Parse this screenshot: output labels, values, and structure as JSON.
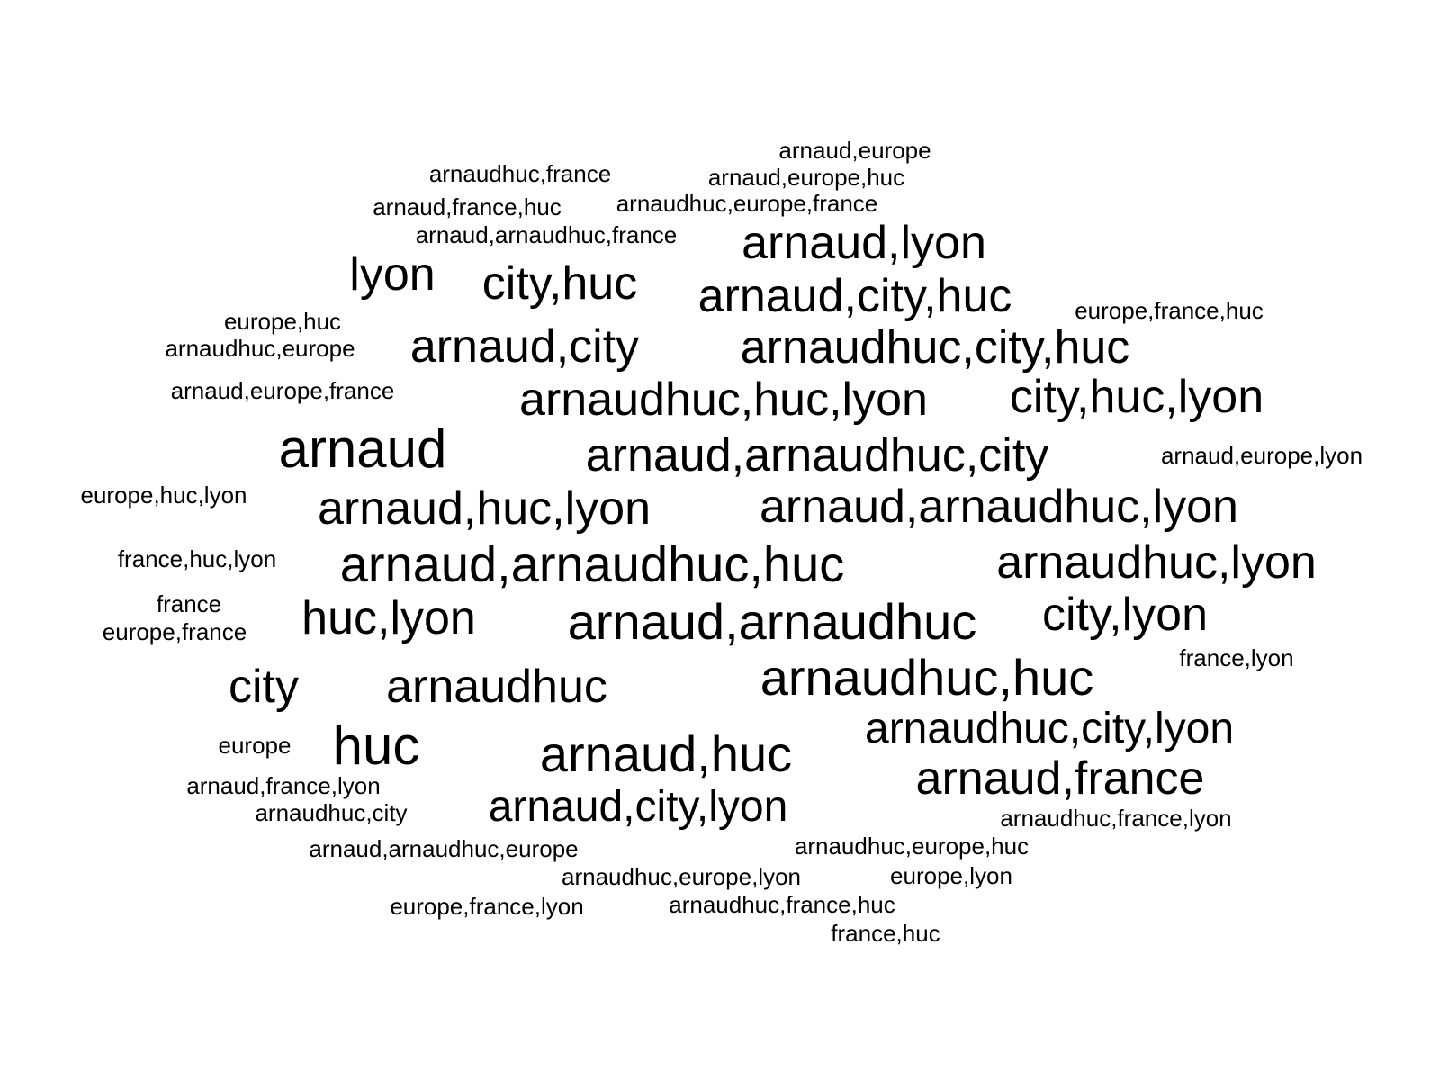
{
  "words": [
    {
      "text": "arnaud,europe",
      "weight": 1
    },
    {
      "text": "arnaudhuc,france",
      "weight": 1
    },
    {
      "text": "arnaud,europe,huc",
      "weight": 1
    },
    {
      "text": "arnaud,france,huc",
      "weight": 1
    },
    {
      "text": "arnaudhuc,europe,france",
      "weight": 1
    },
    {
      "text": "arnaud,arnaudhuc,france",
      "weight": 1
    },
    {
      "text": "arnaud,lyon",
      "weight": 3
    },
    {
      "text": "lyon",
      "weight": 3
    },
    {
      "text": "city,huc",
      "weight": 3
    },
    {
      "text": "arnaud,city,huc",
      "weight": 3
    },
    {
      "text": "europe,france,huc",
      "weight": 1
    },
    {
      "text": "europe,huc",
      "weight": 1
    },
    {
      "text": "arnaudhuc,europe",
      "weight": 1
    },
    {
      "text": "arnaud,city",
      "weight": 3
    },
    {
      "text": "arnaudhuc,city,huc",
      "weight": 3
    },
    {
      "text": "arnaud,europe,france",
      "weight": 1
    },
    {
      "text": "arnaudhuc,huc,lyon",
      "weight": 3
    },
    {
      "text": "city,huc,lyon",
      "weight": 3
    },
    {
      "text": "arnaud",
      "weight": 4
    },
    {
      "text": "arnaud,arnaudhuc,city",
      "weight": 3
    },
    {
      "text": "arnaud,europe,lyon",
      "weight": 1
    },
    {
      "text": "europe,huc,lyon",
      "weight": 1
    },
    {
      "text": "arnaud,huc,lyon",
      "weight": 3
    },
    {
      "text": "arnaud,arnaudhuc,lyon",
      "weight": 3
    },
    {
      "text": "france,huc,lyon",
      "weight": 1
    },
    {
      "text": "arnaud,arnaudhuc,huc",
      "weight": 4
    },
    {
      "text": "arnaudhuc,lyon",
      "weight": 3
    },
    {
      "text": "france",
      "weight": 1
    },
    {
      "text": "europe,france",
      "weight": 1
    },
    {
      "text": "huc,lyon",
      "weight": 3
    },
    {
      "text": "arnaud,arnaudhuc",
      "weight": 4
    },
    {
      "text": "city,lyon",
      "weight": 3
    },
    {
      "text": "france,lyon",
      "weight": 1
    },
    {
      "text": "city",
      "weight": 3
    },
    {
      "text": "arnaudhuc",
      "weight": 3
    },
    {
      "text": "arnaudhuc,huc",
      "weight": 4
    },
    {
      "text": "arnaudhuc,city,lyon",
      "weight": 3
    },
    {
      "text": "europe",
      "weight": 1
    },
    {
      "text": "huc",
      "weight": 4
    },
    {
      "text": "arnaud,huc",
      "weight": 4
    },
    {
      "text": "arnaud,france,lyon",
      "weight": 1
    },
    {
      "text": "arnaudhuc,city",
      "weight": 3
    },
    {
      "text": "arnaud,france",
      "weight": 1
    },
    {
      "text": "arnaud,city,lyon",
      "weight": 3
    },
    {
      "text": "arnaudhuc,france,lyon",
      "weight": 1
    },
    {
      "text": "arnaud,arnaudhuc,europe",
      "weight": 1
    },
    {
      "text": "arnaudhuc,europe,huc",
      "weight": 1
    },
    {
      "text": "arnaudhuc,europe,lyon",
      "weight": 1
    },
    {
      "text": "europe,lyon",
      "weight": 1
    },
    {
      "text": "europe,france,lyon",
      "weight": 1
    },
    {
      "text": "arnaudhuc,france,huc",
      "weight": 1
    },
    {
      "text": "france,huc",
      "weight": 1
    }
  ]
}
